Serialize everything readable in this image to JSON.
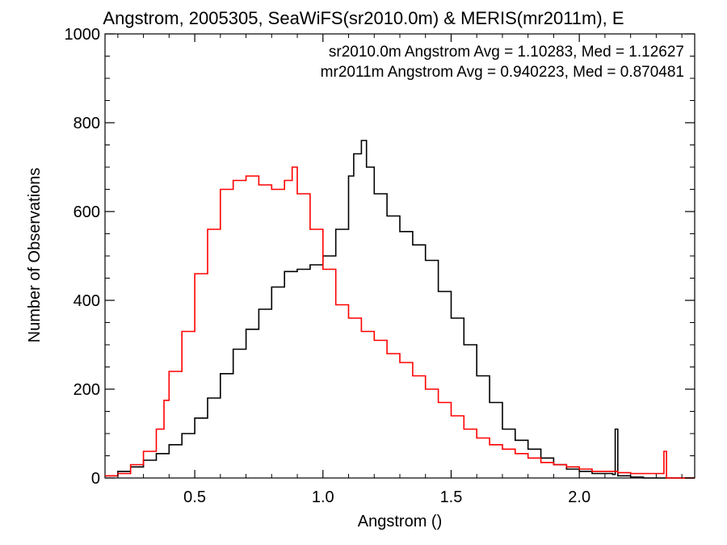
{
  "chart_data": {
    "type": "line",
    "title": "Angstrom, 2005305, SeaWiFS(sr2010.0m) & MERIS(mr2011m), E",
    "xlabel": "Angstrom ()",
    "ylabel": "Number of Observations",
    "xlim": [
      0.15,
      2.45
    ],
    "ylim": [
      0,
      1000
    ],
    "x_ticks": [
      0.5,
      1.0,
      1.5,
      2.0
    ],
    "x_tick_labels": [
      "0.5",
      "1.0",
      "1.5",
      "2.0"
    ],
    "y_ticks": [
      0,
      200,
      400,
      600,
      800,
      1000
    ],
    "y_tick_labels": [
      "0",
      "200",
      "400",
      "600",
      "800",
      "1000"
    ],
    "grid": false,
    "legend_position": "top-right",
    "series": [
      {
        "name": "sr2010.0m Angstrom Avg = 1.10283, Med = 1.12627",
        "color": "#000000",
        "step": "stairs",
        "x": [
          0.15,
          0.2,
          0.25,
          0.3,
          0.35,
          0.4,
          0.45,
          0.5,
          0.55,
          0.6,
          0.65,
          0.7,
          0.75,
          0.8,
          0.85,
          0.9,
          0.95,
          1.0,
          1.05,
          1.1,
          1.12,
          1.15,
          1.17,
          1.2,
          1.25,
          1.3,
          1.35,
          1.4,
          1.45,
          1.5,
          1.55,
          1.6,
          1.65,
          1.7,
          1.75,
          1.8,
          1.85,
          1.9,
          1.95,
          2.0,
          2.05,
          2.1,
          2.13,
          2.14,
          2.15,
          2.2,
          2.25,
          2.3,
          2.35,
          2.45
        ],
        "y": [
          5,
          15,
          25,
          40,
          55,
          75,
          100,
          135,
          180,
          235,
          290,
          335,
          380,
          430,
          465,
          470,
          480,
          500,
          560,
          680,
          730,
          760,
          700,
          640,
          590,
          555,
          525,
          490,
          420,
          360,
          300,
          230,
          170,
          110,
          85,
          65,
          45,
          30,
          20,
          15,
          10,
          10,
          8,
          110,
          5,
          2,
          0,
          0,
          0,
          0
        ]
      },
      {
        "name": "mr2011m Angstrom Avg = 0.940223, Med = 0.870481",
        "color": "#ff0000",
        "step": "stairs",
        "x": [
          0.15,
          0.2,
          0.25,
          0.3,
          0.35,
          0.38,
          0.4,
          0.45,
          0.5,
          0.55,
          0.6,
          0.65,
          0.7,
          0.75,
          0.8,
          0.85,
          0.88,
          0.9,
          0.95,
          1.0,
          1.05,
          1.1,
          1.15,
          1.2,
          1.25,
          1.3,
          1.35,
          1.4,
          1.45,
          1.5,
          1.55,
          1.6,
          1.65,
          1.7,
          1.75,
          1.8,
          1.85,
          1.9,
          1.95,
          2.0,
          2.05,
          2.1,
          2.15,
          2.2,
          2.25,
          2.3,
          2.33,
          2.34,
          2.45
        ],
        "y": [
          5,
          10,
          30,
          60,
          110,
          175,
          240,
          330,
          460,
          560,
          650,
          670,
          680,
          660,
          650,
          670,
          700,
          640,
          560,
          470,
          390,
          360,
          330,
          310,
          280,
          260,
          230,
          200,
          170,
          140,
          110,
          90,
          75,
          65,
          55,
          45,
          35,
          30,
          25,
          20,
          15,
          15,
          12,
          10,
          10,
          10,
          60,
          0,
          0
        ]
      }
    ]
  }
}
